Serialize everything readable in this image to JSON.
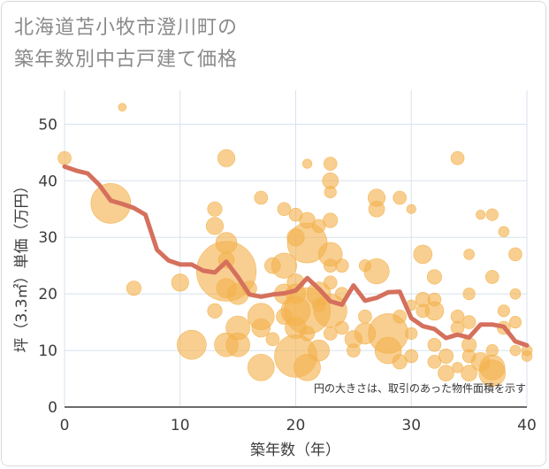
{
  "title_lines": [
    "北海道苫小牧市澄川町の",
    "築年数別中古戸建て価格"
  ],
  "colors": {
    "bubble": "#f3b24d",
    "line": "#d5705d",
    "grid": "#d7e2ee",
    "plot_bg": "#ffffff"
  },
  "chart_data": {
    "type": "scatter",
    "xlabel": "築年数（年）",
    "ylabel": "坪（3.3㎡）単価（万円）",
    "xlim": [
      0,
      40
    ],
    "ylim": [
      0,
      56
    ],
    "xticks": [
      0,
      10,
      20,
      30,
      40
    ],
    "yticks": [
      0,
      10,
      20,
      30,
      40,
      50
    ],
    "grid": true,
    "annotation": "円の大きさは、取引のあった物件面積を示す",
    "points": [
      {
        "x": 0,
        "y": 44,
        "s": 1.0
      },
      {
        "x": 5,
        "y": 53,
        "s": 0.6
      },
      {
        "x": 4,
        "y": 36,
        "s": 3.0
      },
      {
        "x": 6,
        "y": 21,
        "s": 1.1
      },
      {
        "x": 10,
        "y": 22,
        "s": 1.3
      },
      {
        "x": 11,
        "y": 11,
        "s": 2.2
      },
      {
        "x": 13,
        "y": 35,
        "s": 1.1
      },
      {
        "x": 13,
        "y": 32,
        "s": 1.3
      },
      {
        "x": 13,
        "y": 17,
        "s": 1.1
      },
      {
        "x": 14,
        "y": 44,
        "s": 1.3
      },
      {
        "x": 14,
        "y": 29,
        "s": 1.6
      },
      {
        "x": 14,
        "y": 26,
        "s": 1.2
      },
      {
        "x": 14,
        "y": 24,
        "s": 4.5
      },
      {
        "x": 14,
        "y": 21,
        "s": 1.5
      },
      {
        "x": 14,
        "y": 11,
        "s": 1.8
      },
      {
        "x": 15,
        "y": 20,
        "s": 1.6
      },
      {
        "x": 15,
        "y": 14,
        "s": 1.8
      },
      {
        "x": 15,
        "y": 11,
        "s": 1.8
      },
      {
        "x": 16,
        "y": 21,
        "s": 1.1
      },
      {
        "x": 17,
        "y": 37,
        "s": 1.0
      },
      {
        "x": 17,
        "y": 16,
        "s": 2.0
      },
      {
        "x": 17,
        "y": 14,
        "s": 1.4
      },
      {
        "x": 17,
        "y": 7,
        "s": 2.0
      },
      {
        "x": 18,
        "y": 25,
        "s": 1.2
      },
      {
        "x": 18,
        "y": 12,
        "s": 1.0
      },
      {
        "x": 19,
        "y": 35,
        "s": 1.0
      },
      {
        "x": 19,
        "y": 25,
        "s": 1.9
      },
      {
        "x": 19,
        "y": 20,
        "s": 1.5
      },
      {
        "x": 19,
        "y": 16,
        "s": 1.2
      },
      {
        "x": 20,
        "y": 34,
        "s": 1.0
      },
      {
        "x": 20,
        "y": 30,
        "s": 1.3
      },
      {
        "x": 20,
        "y": 22,
        "s": 1.3
      },
      {
        "x": 20,
        "y": 20,
        "s": 1.5
      },
      {
        "x": 20,
        "y": 17,
        "s": 2.2
      },
      {
        "x": 20,
        "y": 14,
        "s": 1.6
      },
      {
        "x": 20,
        "y": 9,
        "s": 3.2
      },
      {
        "x": 21,
        "y": 43,
        "s": 0.7
      },
      {
        "x": 21,
        "y": 33,
        "s": 1.2
      },
      {
        "x": 21,
        "y": 29,
        "s": 3.0
      },
      {
        "x": 21,
        "y": 17,
        "s": 3.5
      },
      {
        "x": 21,
        "y": 13,
        "s": 1.1
      },
      {
        "x": 21,
        "y": 7,
        "s": 2.0
      },
      {
        "x": 22,
        "y": 32,
        "s": 1.0
      },
      {
        "x": 22,
        "y": 20,
        "s": 1.8
      },
      {
        "x": 22,
        "y": 18,
        "s": 1.0
      },
      {
        "x": 22,
        "y": 10,
        "s": 1.6
      },
      {
        "x": 23,
        "y": 43,
        "s": 1.0
      },
      {
        "x": 23,
        "y": 40,
        "s": 1.2
      },
      {
        "x": 23,
        "y": 38,
        "s": 0.9
      },
      {
        "x": 23,
        "y": 33,
        "s": 1.1
      },
      {
        "x": 23,
        "y": 27,
        "s": 1.8
      },
      {
        "x": 23,
        "y": 25,
        "s": 1.0
      },
      {
        "x": 23,
        "y": 22,
        "s": 1.0
      },
      {
        "x": 23,
        "y": 17,
        "s": 2.5
      },
      {
        "x": 23,
        "y": 13,
        "s": 1.0
      },
      {
        "x": 24,
        "y": 25,
        "s": 1.0
      },
      {
        "x": 24,
        "y": 20,
        "s": 1.0
      },
      {
        "x": 24,
        "y": 14,
        "s": 1.0
      },
      {
        "x": 25,
        "y": 12,
        "s": 1.3
      },
      {
        "x": 25,
        "y": 10,
        "s": 1.0
      },
      {
        "x": 26,
        "y": 25,
        "s": 0.9
      },
      {
        "x": 26,
        "y": 16,
        "s": 1.0
      },
      {
        "x": 26,
        "y": 13,
        "s": 1.6
      },
      {
        "x": 27,
        "y": 37,
        "s": 1.3
      },
      {
        "x": 27,
        "y": 35,
        "s": 1.2
      },
      {
        "x": 27,
        "y": 24,
        "s": 1.9
      },
      {
        "x": 28,
        "y": 13,
        "s": 3.0
      },
      {
        "x": 28,
        "y": 10,
        "s": 2.0
      },
      {
        "x": 29,
        "y": 37,
        "s": 1.0
      },
      {
        "x": 29,
        "y": 16,
        "s": 1.0
      },
      {
        "x": 29,
        "y": 8,
        "s": 1.1
      },
      {
        "x": 30,
        "y": 35,
        "s": 0.7
      },
      {
        "x": 30,
        "y": 18,
        "s": 0.8
      },
      {
        "x": 30,
        "y": 13,
        "s": 0.9
      },
      {
        "x": 30,
        "y": 9,
        "s": 1.0
      },
      {
        "x": 31,
        "y": 27,
        "s": 1.4
      },
      {
        "x": 31,
        "y": 19,
        "s": 1.1
      },
      {
        "x": 31,
        "y": 17,
        "s": 1.0
      },
      {
        "x": 32,
        "y": 23,
        "s": 1.1
      },
      {
        "x": 32,
        "y": 19,
        "s": 1.0
      },
      {
        "x": 32,
        "y": 17,
        "s": 1.4
      },
      {
        "x": 32,
        "y": 11,
        "s": 1.0
      },
      {
        "x": 32,
        "y": 8,
        "s": 1.0
      },
      {
        "x": 33,
        "y": 9,
        "s": 1.1
      },
      {
        "x": 33,
        "y": 6,
        "s": 1.2
      },
      {
        "x": 34,
        "y": 44,
        "s": 1.0
      },
      {
        "x": 34,
        "y": 16,
        "s": 1.0
      },
      {
        "x": 34,
        "y": 14,
        "s": 1.0
      },
      {
        "x": 34,
        "y": 7,
        "s": 0.8
      },
      {
        "x": 35,
        "y": 27,
        "s": 0.8
      },
      {
        "x": 35,
        "y": 20,
        "s": 0.9
      },
      {
        "x": 35,
        "y": 15,
        "s": 1.0
      },
      {
        "x": 35,
        "y": 11,
        "s": 1.1
      },
      {
        "x": 35,
        "y": 9,
        "s": 1.0
      },
      {
        "x": 35,
        "y": 6,
        "s": 1.2
      },
      {
        "x": 36,
        "y": 34,
        "s": 0.7
      },
      {
        "x": 36,
        "y": 8,
        "s": 1.4
      },
      {
        "x": 37,
        "y": 34,
        "s": 0.9
      },
      {
        "x": 37,
        "y": 23,
        "s": 1.0
      },
      {
        "x": 37,
        "y": 10,
        "s": 0.9
      },
      {
        "x": 37,
        "y": 7,
        "s": 1.9
      },
      {
        "x": 37,
        "y": 6,
        "s": 2.0
      },
      {
        "x": 38,
        "y": 31,
        "s": 0.8
      },
      {
        "x": 38,
        "y": 17,
        "s": 0.9
      },
      {
        "x": 38,
        "y": 14,
        "s": 1.0
      },
      {
        "x": 39,
        "y": 27,
        "s": 1.0
      },
      {
        "x": 39,
        "y": 20,
        "s": 0.8
      },
      {
        "x": 39,
        "y": 15,
        "s": 0.9
      },
      {
        "x": 39,
        "y": 10,
        "s": 0.8
      },
      {
        "x": 40,
        "y": 10,
        "s": 0.8
      },
      {
        "x": 40,
        "y": 9,
        "s": 0.8
      }
    ],
    "trend": {
      "x": [
        0,
        1,
        2,
        3,
        4,
        5,
        6,
        7,
        8,
        9,
        10,
        11,
        12,
        13,
        14,
        15,
        16,
        17,
        18,
        19,
        20,
        21,
        22,
        23,
        24,
        25,
        26,
        27,
        28,
        29,
        30,
        31,
        32,
        33,
        34,
        35,
        36,
        37,
        38,
        39,
        40
      ],
      "y": [
        42.5,
        41.8,
        41.3,
        39.3,
        36.5,
        35.9,
        35.2,
        34.0,
        27.8,
        25.9,
        25.2,
        25.2,
        24.1,
        23.8,
        25.7,
        23.0,
        19.9,
        19.5,
        19.9,
        20.1,
        20.6,
        22.8,
        20.9,
        18.7,
        18.1,
        21.5,
        18.8,
        19.3,
        20.3,
        20.4,
        15.7,
        14.3,
        13.8,
        12.2,
        12.8,
        12.3,
        14.6,
        14.6,
        14.2,
        11.6,
        10.9
      ]
    }
  }
}
